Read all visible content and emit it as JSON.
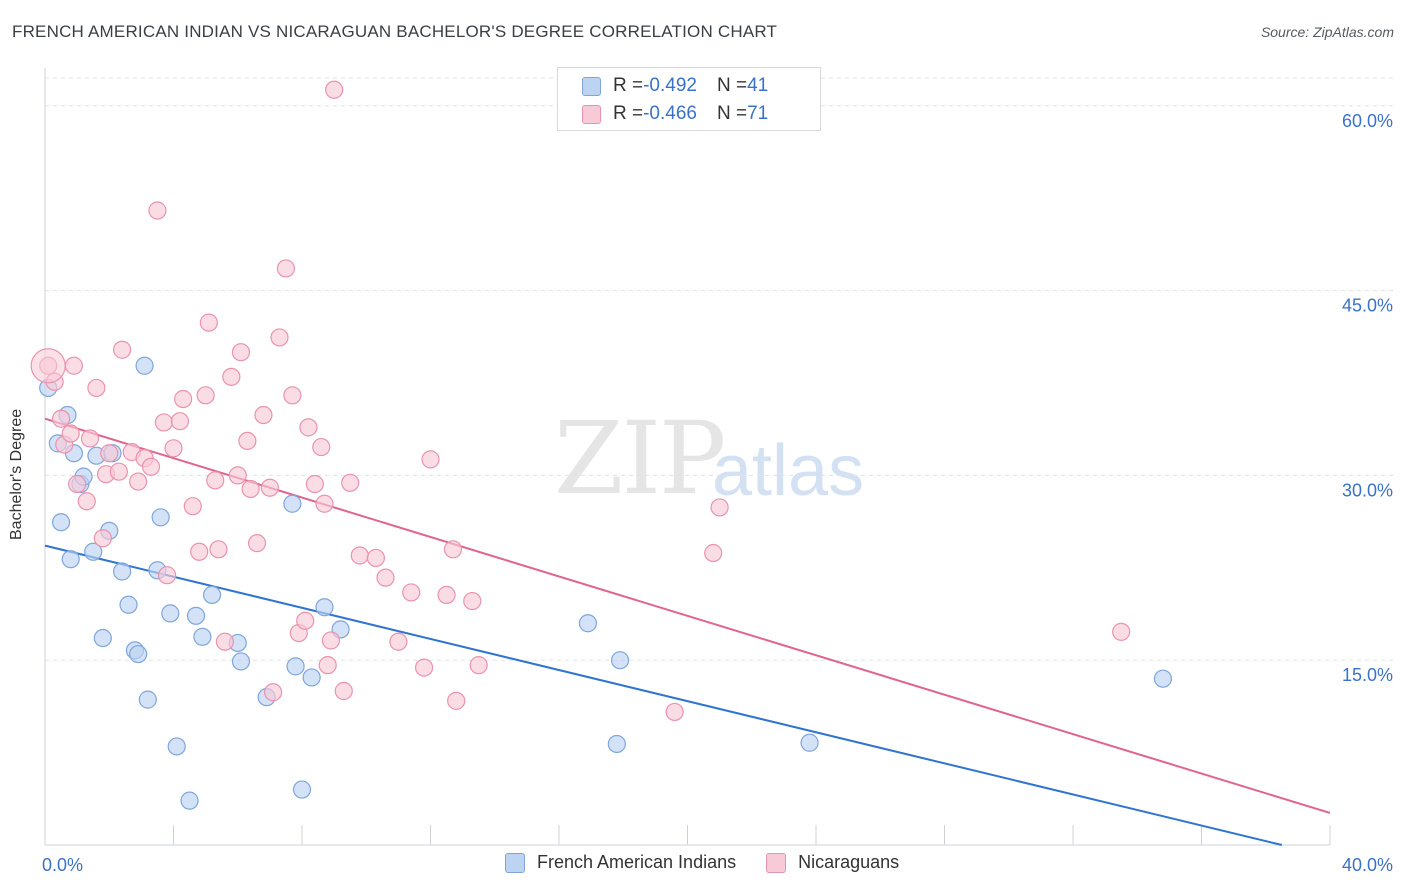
{
  "header": {
    "title": "FRENCH AMERICAN INDIAN VS NICARAGUAN BACHELOR'S DEGREE CORRELATION CHART",
    "source": "Source: ZipAtlas.com"
  },
  "watermark": {
    "zip": "ZIP",
    "atlas": "atlas"
  },
  "legend_top": {
    "rows": [
      {
        "r_label": "R = ",
        "r_value": "-0.492",
        "n_label": "N = ",
        "n_value": "41"
      },
      {
        "r_label": "R = ",
        "r_value": "-0.466",
        "n_label": "N = ",
        "n_value": "71"
      }
    ]
  },
  "colors": {
    "blue_fill": "#bcd3f1",
    "blue_stroke": "#7fa6db",
    "blue_line": "#2f74d0",
    "pink_fill": "#f8cad7",
    "pink_stroke": "#ea93ae",
    "pink_line": "#e0648e",
    "axis_text": "#3b72c9",
    "grid": "#dfe3e8"
  },
  "chart_data": {
    "type": "scatter",
    "title": "FRENCH AMERICAN INDIAN VS NICARAGUAN BACHELOR'S DEGREE CORRELATION CHART",
    "xlabel": "",
    "ylabel": "Bachelor's Degree",
    "xlim": [
      0,
      40
    ],
    "ylim": [
      0,
      62.5
    ],
    "x_tick_labels": [
      {
        "value": 0,
        "label": "0.0%"
      },
      {
        "value": 40,
        "label": "40.0%"
      }
    ],
    "y_tick_labels": [
      {
        "value": 15,
        "label": "15.0%"
      },
      {
        "value": 30,
        "label": "30.0%"
      },
      {
        "value": 45,
        "label": "45.0%"
      },
      {
        "value": 60,
        "label": "60.0%"
      }
    ],
    "grid": true,
    "legend_position": "bottom",
    "series": [
      {
        "name": "French American Indians",
        "color": "#7fa6db",
        "trend": {
          "x": [
            0,
            38.5
          ],
          "y": [
            24.3,
            0
          ]
        },
        "points": [
          [
            0.1,
            37.1
          ],
          [
            0.4,
            32.6
          ],
          [
            0.5,
            26.2
          ],
          [
            0.7,
            34.9
          ],
          [
            0.8,
            23.2
          ],
          [
            0.9,
            31.8
          ],
          [
            1.1,
            29.3
          ],
          [
            1.2,
            29.9
          ],
          [
            1.5,
            23.8
          ],
          [
            1.6,
            31.6
          ],
          [
            1.8,
            16.8
          ],
          [
            2.0,
            25.5
          ],
          [
            2.1,
            31.8
          ],
          [
            2.4,
            22.2
          ],
          [
            2.6,
            19.5
          ],
          [
            2.8,
            15.8
          ],
          [
            2.9,
            15.5
          ],
          [
            3.1,
            38.9
          ],
          [
            3.2,
            11.8
          ],
          [
            3.5,
            22.3
          ],
          [
            3.6,
            26.6
          ],
          [
            3.9,
            18.8
          ],
          [
            4.1,
            8.0
          ],
          [
            4.5,
            3.6
          ],
          [
            4.7,
            18.6
          ],
          [
            4.9,
            16.9
          ],
          [
            5.2,
            20.3
          ],
          [
            6.0,
            16.4
          ],
          [
            6.1,
            14.9
          ],
          [
            6.9,
            12.0
          ],
          [
            7.7,
            27.7
          ],
          [
            7.8,
            14.5
          ],
          [
            8.0,
            4.5
          ],
          [
            8.3,
            13.6
          ],
          [
            8.7,
            19.3
          ],
          [
            9.2,
            17.5
          ],
          [
            16.9,
            18.0
          ],
          [
            17.9,
            15.0
          ],
          [
            17.8,
            8.2
          ],
          [
            23.8,
            8.3
          ],
          [
            34.8,
            13.5
          ]
        ]
      },
      {
        "name": "Nicaraguans",
        "color": "#ea93ae",
        "trend": {
          "x": [
            0,
            40
          ],
          "y": [
            34.6,
            2.6
          ]
        },
        "points": [
          [
            0.1,
            38.9
          ],
          [
            0.3,
            37.6
          ],
          [
            0.5,
            34.6
          ],
          [
            0.6,
            32.5
          ],
          [
            0.8,
            33.4
          ],
          [
            0.9,
            38.9
          ],
          [
            1.0,
            29.3
          ],
          [
            1.3,
            27.9
          ],
          [
            1.4,
            33.0
          ],
          [
            1.6,
            37.1
          ],
          [
            1.8,
            24.9
          ],
          [
            1.9,
            30.1
          ],
          [
            2.0,
            31.8
          ],
          [
            2.3,
            30.3
          ],
          [
            2.4,
            40.2
          ],
          [
            2.7,
            31.9
          ],
          [
            2.9,
            29.5
          ],
          [
            3.1,
            31.4
          ],
          [
            3.3,
            30.7
          ],
          [
            3.5,
            51.5
          ],
          [
            3.7,
            34.3
          ],
          [
            3.8,
            21.9
          ],
          [
            4.0,
            32.2
          ],
          [
            4.2,
            34.4
          ],
          [
            4.3,
            36.2
          ],
          [
            4.6,
            27.5
          ],
          [
            4.8,
            23.8
          ],
          [
            5.0,
            36.5
          ],
          [
            5.1,
            42.4
          ],
          [
            5.3,
            29.6
          ],
          [
            5.4,
            24.0
          ],
          [
            5.6,
            16.5
          ],
          [
            5.8,
            38.0
          ],
          [
            6.0,
            30.0
          ],
          [
            6.1,
            40.0
          ],
          [
            6.3,
            32.8
          ],
          [
            6.4,
            28.9
          ],
          [
            6.6,
            24.5
          ],
          [
            6.8,
            34.9
          ],
          [
            7.0,
            29.0
          ],
          [
            7.1,
            12.4
          ],
          [
            7.3,
            41.2
          ],
          [
            7.5,
            46.8
          ],
          [
            7.7,
            36.5
          ],
          [
            7.9,
            17.2
          ],
          [
            8.1,
            18.2
          ],
          [
            8.2,
            33.9
          ],
          [
            8.4,
            29.3
          ],
          [
            8.6,
            32.3
          ],
          [
            8.7,
            27.7
          ],
          [
            8.8,
            14.6
          ],
          [
            8.9,
            16.6
          ],
          [
            9.0,
            61.3
          ],
          [
            9.3,
            12.5
          ],
          [
            9.5,
            29.4
          ],
          [
            9.8,
            23.5
          ],
          [
            10.3,
            23.3
          ],
          [
            10.6,
            21.7
          ],
          [
            11.0,
            16.5
          ],
          [
            11.4,
            20.5
          ],
          [
            11.8,
            14.4
          ],
          [
            12.0,
            31.3
          ],
          [
            12.5,
            20.3
          ],
          [
            12.7,
            24.0
          ],
          [
            12.8,
            11.7
          ],
          [
            13.3,
            19.8
          ],
          [
            13.5,
            14.6
          ],
          [
            19.6,
            10.8
          ],
          [
            20.8,
            23.7
          ],
          [
            21.0,
            27.4
          ],
          [
            33.5,
            17.3
          ]
        ]
      }
    ]
  },
  "bottom_legend": {
    "items": [
      {
        "label": "French American Indians"
      },
      {
        "label": "Nicaraguans"
      }
    ]
  }
}
